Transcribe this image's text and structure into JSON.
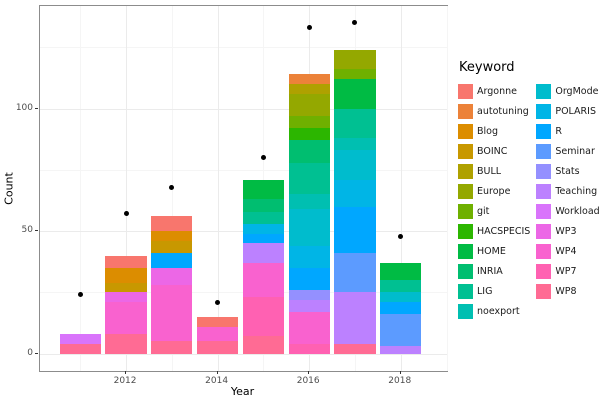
{
  "chart_data": {
    "type": "bar",
    "stacked": true,
    "xlabel": "Year",
    "ylabel": "Count",
    "legend_title": "Keyword",
    "x_ticks": [
      2012,
      2014,
      2016,
      2018
    ],
    "x_minor": [
      2011,
      2013,
      2015,
      2017,
      2019
    ],
    "y_ticks": [
      0,
      50,
      100
    ],
    "y_minor": [
      25,
      75,
      125
    ],
    "x_domain": [
      2010.12,
      2019.01
    ],
    "y_domain": [
      -7.1,
      141.9
    ],
    "bar_width_years": 0.9,
    "grid": true,
    "legend_position": "right",
    "point_color": "#000000",
    "keywords": [
      "Argonne",
      "autotuning",
      "Blog",
      "BOINC",
      "BULL",
      "Europe",
      "git",
      "HACSPECIS",
      "HOME",
      "INRIA",
      "LIG",
      "noexport",
      "OrgMode",
      "POLARIS",
      "R",
      "Seminar",
      "Stats",
      "Teaching",
      "Workload",
      "WP3",
      "WP4",
      "WP7",
      "WP8"
    ],
    "palette": {
      "Argonne": "#F8766D",
      "autotuning": "#EC8239",
      "Blog": "#DC8D00",
      "BOINC": "#C89800",
      "BULL": "#AFA100",
      "Europe": "#94A800",
      "git": "#6FB000",
      "HACSPECIS": "#2CB600",
      "HOME": "#00BB44",
      "INRIA": "#00BE70",
      "LIG": "#00C092",
      "noexport": "#00BFB1",
      "OrgMode": "#00BCCD",
      "POLARIS": "#00B5E6",
      "R": "#00A7FF",
      "Seminar": "#5C9BFF",
      "Stats": "#9490FF",
      "Teaching": "#BC81FF",
      "Workload": "#D974FB",
      "WP3": "#EC67E6",
      "WP4": "#F962CF",
      "WP7": "#FF61B2",
      "WP8": "#FF6B94"
    },
    "stack_order_bottom_to_top": [
      "WP8",
      "WP7",
      "WP4",
      "WP3",
      "Workload",
      "Teaching",
      "Stats",
      "Seminar",
      "R",
      "POLARIS",
      "OrgMode",
      "noexport",
      "LIG",
      "INRIA",
      "HOME",
      "HACSPECIS",
      "git",
      "Europe",
      "BULL",
      "BOINC",
      "Blog",
      "autotuning",
      "Argonne"
    ],
    "years": [
      2011,
      2012,
      2013,
      2014,
      2015,
      2016,
      2017,
      2018
    ],
    "bars": {
      "2011": {
        "WP8": 4,
        "Workload": 4
      },
      "2012": {
        "WP8": 8,
        "WP4": 13,
        "WP3": 4,
        "Blog": 6,
        "BOINC": 4,
        "Argonne": 5
      },
      "2013": {
        "WP8": 5,
        "WP4": 23,
        "WP3": 7,
        "R": 6,
        "BOINC": 5,
        "Blog": 4,
        "Argonne": 6
      },
      "2014": {
        "WP8": 5,
        "WP4": 6,
        "Argonne": 4
      },
      "2015": {
        "WP8": 7,
        "WP7": 16,
        "WP4": 14,
        "Teaching": 8,
        "R": 4,
        "POLARIS": 4,
        "LIG": 5,
        "INRIA": 5,
        "HOME": 8
      },
      "2016": {
        "WP7": 4,
        "WP4": 13,
        "Teaching": 5,
        "Stats": 4,
        "R": 9,
        "POLARIS": 9,
        "OrgMode": 15,
        "noexport": 6,
        "LIG": 13,
        "INRIA": 9,
        "HACSPECIS": 5,
        "git": 5,
        "Europe": 9,
        "BULL": 4,
        "autotuning": 4
      },
      "2017": {
        "WP8": 4,
        "Teaching": 21,
        "Seminar": 16,
        "R": 19,
        "POLARIS": 11,
        "OrgMode": 12,
        "noexport": 5,
        "LIG": 12,
        "HOME": 12,
        "git": 4,
        "Europe": 8
      },
      "2018": {
        "Teaching": 3,
        "Seminar": 13,
        "R": 5,
        "OrgMode": 4,
        "LIG": 5,
        "HOME": 7
      }
    },
    "bar_totals": {
      "2011": 8,
      "2012": 40,
      "2013": 56,
      "2014": 15,
      "2015": 71,
      "2016": 114,
      "2017": 124,
      "2018": 37
    },
    "points": {
      "2011": 24,
      "2012": 57,
      "2013": 68,
      "2014": 21,
      "2015": 80,
      "2016": 133,
      "2017": 135,
      "2018": 48
    }
  }
}
